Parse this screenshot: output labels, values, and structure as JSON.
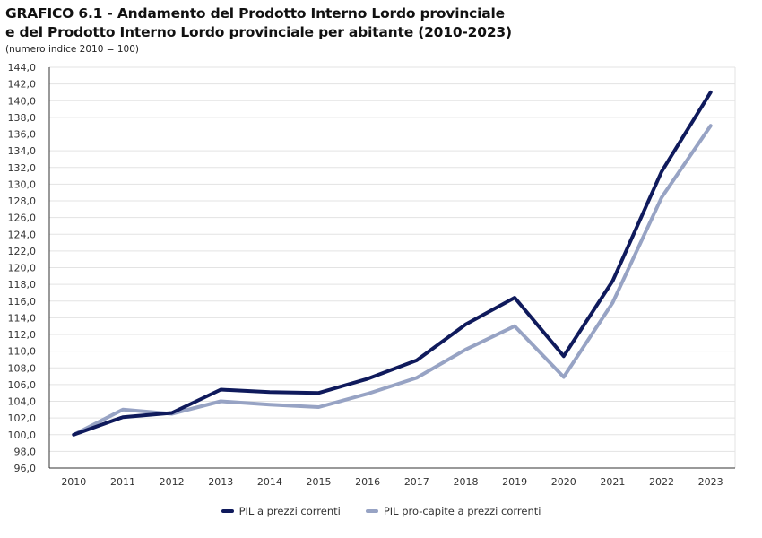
{
  "chart_data": {
    "type": "line",
    "title_line1": "GRAFICO 6.1 - Andamento del Prodotto Interno Lordo provinciale",
    "title_line2": "e del Prodotto Interno Lordo provinciale per abitante (2010-2023)",
    "subtitle": "(numero indice 2010 = 100)",
    "xlabel": "",
    "ylabel": "",
    "ylim": [
      96,
      144
    ],
    "ytick_step": 2,
    "ytick_labels": [
      "96,0",
      "98,0",
      "100,0",
      "102,0",
      "104,0",
      "106,0",
      "108,0",
      "110,0",
      "112,0",
      "114,0",
      "116,0",
      "118,0",
      "120,0",
      "122,0",
      "124,0",
      "126,0",
      "128,0",
      "130,0",
      "132,0",
      "134,0",
      "136,0",
      "138,0",
      "140,0",
      "142,0",
      "144,0"
    ],
    "categories": [
      "2010",
      "2011",
      "2012",
      "2013",
      "2014",
      "2015",
      "2016",
      "2017",
      "2018",
      "2019",
      "2020",
      "2021",
      "2022",
      "2023"
    ],
    "grid": true,
    "legend_position": "bottom",
    "series": [
      {
        "name": "PIL a prezzi correnti",
        "color": "#0f1a5c",
        "values": [
          100.0,
          102.1,
          102.6,
          105.4,
          105.1,
          105.0,
          106.7,
          108.9,
          113.2,
          116.4,
          109.4,
          118.4,
          131.5,
          141.0
        ]
      },
      {
        "name": "PIL pro-capite a prezzi correnti",
        "color": "#97a3c4",
        "values": [
          100.0,
          103.0,
          102.5,
          104.0,
          103.6,
          103.3,
          104.9,
          106.8,
          110.2,
          113.0,
          106.9,
          115.8,
          128.4,
          137.0
        ]
      }
    ]
  }
}
